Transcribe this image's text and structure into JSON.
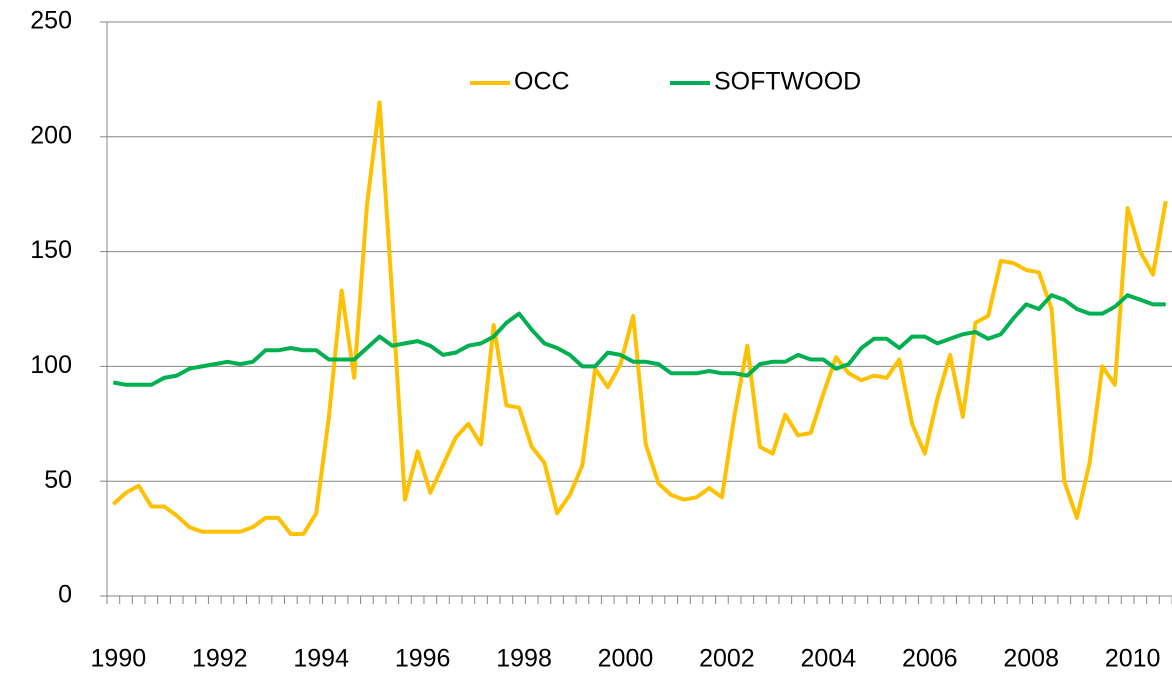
{
  "chart_data": {
    "type": "line",
    "categories": [
      "1990",
      null,
      null,
      null,
      null,
      null,
      null,
      null,
      "1992",
      null,
      null,
      null,
      null,
      null,
      null,
      null,
      "1994",
      null,
      null,
      null,
      null,
      null,
      null,
      null,
      "1996",
      null,
      null,
      null,
      null,
      null,
      null,
      null,
      "1998",
      null,
      null,
      null,
      null,
      null,
      null,
      null,
      "2000",
      null,
      null,
      null,
      null,
      null,
      null,
      null,
      "2002",
      null,
      null,
      null,
      null,
      null,
      null,
      null,
      "2004",
      null,
      null,
      null,
      null,
      null,
      null,
      null,
      "2006",
      null,
      null,
      null,
      null,
      null,
      null,
      null,
      "2008",
      null,
      null,
      null,
      null,
      null,
      null,
      null,
      "2010",
      null,
      null,
      null
    ],
    "series": [
      {
        "name": "OCC",
        "color": "#ffc000",
        "values": [
          40,
          45,
          48,
          39,
          39,
          35,
          30,
          28,
          28,
          28,
          28,
          30,
          34,
          34,
          27,
          27,
          36,
          78,
          133,
          95,
          170,
          215,
          130,
          42,
          63,
          45,
          57,
          69,
          75,
          66,
          118,
          83,
          82,
          65,
          58,
          36,
          44,
          57,
          99,
          91,
          101,
          122,
          66,
          49,
          44,
          42,
          43,
          47,
          43,
          79,
          109,
          65,
          62,
          79,
          70,
          71,
          88,
          104,
          97,
          94,
          96,
          95,
          103,
          75,
          62,
          86,
          105,
          78,
          119,
          122,
          146,
          145,
          142,
          141,
          125,
          50,
          34,
          58,
          100,
          92,
          169,
          150,
          140,
          172
        ]
      },
      {
        "name": "SOFTWOOD",
        "color": "#00b050",
        "values": [
          93,
          92,
          92,
          92,
          95,
          96,
          99,
          100,
          101,
          102,
          101,
          102,
          107,
          107,
          108,
          107,
          107,
          103,
          103,
          103,
          108,
          113,
          109,
          110,
          111,
          109,
          105,
          106,
          109,
          110,
          113,
          119,
          123,
          116,
          110,
          108,
          105,
          100,
          100,
          106,
          105,
          102,
          102,
          101,
          97,
          97,
          97,
          98,
          97,
          97,
          96,
          101,
          102,
          102,
          105,
          103,
          103,
          99,
          101,
          108,
          112,
          112,
          108,
          113,
          113,
          110,
          112,
          114,
          115,
          112,
          114,
          121,
          127,
          125,
          131,
          129,
          125,
          123,
          123,
          126,
          131,
          129,
          127,
          127
        ]
      }
    ],
    "ylim": [
      0,
      250
    ],
    "yticks": [
      0,
      50,
      100,
      150,
      200,
      250
    ],
    "grid": true,
    "legend": "top"
  }
}
